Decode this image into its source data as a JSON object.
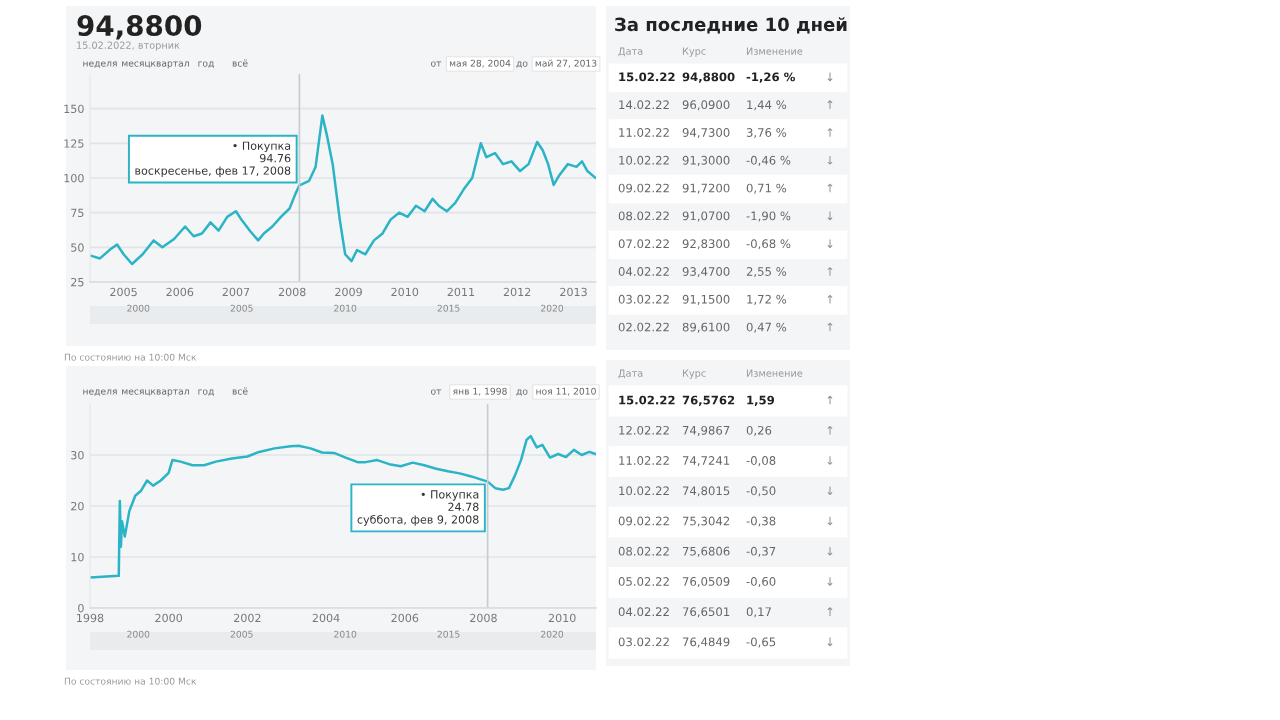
{
  "chart_data": [
    {
      "type": "line",
      "title": "94,8800",
      "subtitle": "15.02.2022, вторник",
      "x": [
        "2004-06-01",
        "2004-08-01",
        "2004-10-01",
        "2004-11-20",
        "2005-01-01",
        "2005-02-25",
        "2005-05-05",
        "2005-07-15",
        "2005-09-10",
        "2005-11-25",
        "2006-02-05",
        "2006-04-01",
        "2006-05-25",
        "2006-07-20",
        "2006-09-10",
        "2006-11-05",
        "2007-01-01",
        "2007-02-05",
        "2007-04-01",
        "2007-05-25",
        "2007-07-01",
        "2007-08-25",
        "2007-10-20",
        "2007-12-15",
        "2008-01-20",
        "2008-02-17",
        "2008-04-20",
        "2008-06-01",
        "2008-07-15",
        "2008-08-15",
        "2008-09-20",
        "2008-11-05",
        "2008-12-10",
        "2009-01-20",
        "2009-02-25",
        "2009-04-20",
        "2009-06-15",
        "2009-08-10",
        "2009-10-01",
        "2009-11-25",
        "2010-01-20",
        "2010-03-15",
        "2010-05-10",
        "2010-07-01",
        "2010-08-10",
        "2010-10-01",
        "2010-11-25",
        "2011-01-20",
        "2011-03-15",
        "2011-05-10",
        "2011-06-15",
        "2011-08-10",
        "2011-10-01",
        "2011-11-25",
        "2012-01-20",
        "2012-03-15",
        "2012-05-10",
        "2012-06-15",
        "2012-07-20",
        "2012-08-25",
        "2012-10-01",
        "2012-11-25",
        "2013-01-20",
        "2013-02-25",
        "2013-04-01",
        "2013-05-25"
      ],
      "series": [
        {
          "color": "#2bb3c6",
          "values": [
            44,
            42,
            48,
            52,
            45,
            38,
            45,
            55,
            50,
            56,
            65,
            58,
            60,
            68,
            62,
            72,
            76,
            70,
            62,
            55,
            60,
            65,
            72,
            78,
            88,
            94.76,
            98,
            108,
            145,
            130,
            110,
            70,
            45,
            40,
            48,
            45,
            55,
            60,
            70,
            75,
            72,
            80,
            76,
            85,
            80,
            76,
            82,
            92,
            100,
            125,
            115,
            118,
            110,
            112,
            105,
            110,
            126,
            120,
            110,
            95,
            102,
            110,
            108,
            112,
            105,
            100
          ]
        }
      ],
      "xlim": [
        "2004-05-28",
        "2013-05-27"
      ],
      "ylim": [
        25,
        175
      ],
      "xticks": [
        {
          "value": "2005-01-01",
          "label": "2005"
        },
        {
          "value": "2006-01-01",
          "label": "2006"
        },
        {
          "value": "2007-01-01",
          "label": "2007"
        },
        {
          "value": "2008-01-01",
          "label": "2008"
        },
        {
          "value": "2009-01-01",
          "label": "2009"
        },
        {
          "value": "2010-01-01",
          "label": "2010"
        },
        {
          "value": "2011-01-01",
          "label": "2011"
        },
        {
          "value": "2012-01-01",
          "label": "2012"
        },
        {
          "value": "2013-01-01",
          "label": "2013"
        }
      ],
      "yticks": [
        25,
        50,
        75,
        100,
        125,
        150
      ],
      "grid": "y",
      "ref_lines": [
        {
          "axis": "x",
          "value": "2008-02-17",
          "color": "#c8ccd2"
        }
      ],
      "annotations": [
        "неделя",
        "месяц",
        "квартал",
        "год",
        "всё",
        "от",
        "мая 28, 2004",
        "до",
        "май 27, 2013",
        "По состоянию на 10:00 Мск",
        {
          "text": "• Покупка\n94.76\nвоскресенье, фев 17, 2008",
          "x": "2008-02-17",
          "y": 94.76
        }
      ],
      "x2lim": [
        "1997-09-01",
        "2022-02-15"
      ],
      "x2ticks": [
        {
          "value": "2000-01-01",
          "label": "2000"
        },
        {
          "value": "2005-01-01",
          "label": "2005"
        },
        {
          "value": "2010-01-01",
          "label": "2010"
        },
        {
          "value": "2015-01-01",
          "label": "2015"
        },
        {
          "value": "2020-01-01",
          "label": "2020"
        }
      ]
    },
    {
      "type": "other",
      "title": "За последние 10 дней",
      "categories": [
        "Дата",
        "Курс",
        "Изменение",
        null
      ],
      "annotations": [
        "15.02.22",
        "94,8800",
        "-1,26 %",
        "↓",
        "14.02.22",
        "96,0900",
        "1,44 %",
        "↑",
        "11.02.22",
        "94,7300",
        "3,76 %",
        "↑",
        "10.02.22",
        "91,3000",
        "-0,46 %",
        "↓",
        "09.02.22",
        "91,7200",
        "0,71 %",
        "↑",
        "08.02.22",
        "91,0700",
        "-1,90 %",
        "↓",
        "07.02.22",
        "92,8300",
        "-0,68 %",
        "↓",
        "04.02.22",
        "93,4700",
        "2,55 %",
        "↑",
        "03.02.22",
        "91,1500",
        "1,72 %",
        "↑",
        "02.02.22",
        "89,6100",
        "0,47 %",
        "↑"
      ]
    },
    {
      "type": "line",
      "x": [
        "1998-01-01",
        "1998-09-25",
        "1998-10-05",
        "1998-10-15",
        "1998-10-25",
        "1998-11-20",
        "1999-01-01",
        "1999-02-25",
        "1999-04-20",
        "1999-06-15",
        "1999-08-10",
        "1999-10-20",
        "2000-01-01",
        "2000-02-05",
        "2000-04-20",
        "2000-08-10",
        "2000-11-25",
        "2001-03-15",
        "2001-08-10",
        "2002-01-01",
        "2002-04-20",
        "2002-09-10",
        "2003-02-05",
        "2003-04-20",
        "2003-08-10",
        "2003-11-25",
        "2004-03-15",
        "2004-07-01",
        "2004-10-20",
        "2005-01-01",
        "2005-04-20",
        "2005-08-10",
        "2005-11-25",
        "2006-03-15",
        "2006-07-01",
        "2006-10-20",
        "2007-02-05",
        "2007-05-25",
        "2007-09-10",
        "2008-02-09",
        "2008-04-20",
        "2008-07-01",
        "2008-08-25",
        "2008-10-20",
        "2008-12-15",
        "2009-02-05",
        "2009-03-15",
        "2009-05-10",
        "2009-07-01",
        "2009-09-10",
        "2009-11-25",
        "2010-02-05",
        "2010-04-20",
        "2010-07-01",
        "2010-09-10",
        "2010-11-05"
      ],
      "series": [
        {
          "color": "#2bb3c6",
          "values": [
            6,
            6.3,
            21,
            12,
            17,
            14,
            19,
            22,
            23,
            25,
            24,
            25,
            26.5,
            29,
            28.7,
            28,
            28,
            28.7,
            29.3,
            29.7,
            30.6,
            31.3,
            31.7,
            31.8,
            31.3,
            30.5,
            30.4,
            29.5,
            28.6,
            28.6,
            29,
            28.2,
            27.8,
            28.5,
            28,
            27.3,
            26.8,
            26.4,
            25.8,
            24.78,
            23.5,
            23.2,
            23.5,
            26,
            29,
            33,
            33.7,
            31.5,
            32,
            29.5,
            30.2,
            29.6,
            31,
            30,
            30.6,
            30.2
          ]
        }
      ],
      "xlim": [
        "1998-01-01",
        "2010-11-11"
      ],
      "ylim": [
        0,
        40
      ],
      "xticks": [
        {
          "value": "1998-01-01",
          "label": "1998"
        },
        {
          "value": "2000-01-01",
          "label": "2000"
        },
        {
          "value": "2002-01-01",
          "label": "2002"
        },
        {
          "value": "2004-01-01",
          "label": "2004"
        },
        {
          "value": "2006-01-01",
          "label": "2006"
        },
        {
          "value": "2008-01-01",
          "label": "2008"
        },
        {
          "value": "2010-01-01",
          "label": "2010"
        }
      ],
      "yticks": [
        0,
        10,
        20,
        30
      ],
      "grid": "y",
      "ref_lines": [
        {
          "axis": "x",
          "value": "2008-02-09",
          "color": "#c8ccd2"
        }
      ],
      "annotations": [
        "неделя",
        "месяц",
        "квартал",
        "год",
        "всё",
        "от",
        "янв 1, 1998",
        "до",
        "ноя 11, 2010",
        "По состоянию на 10:00 Мск",
        {
          "text": "• Покупка\n24.78\nсуббота, фев 9, 2008",
          "x": "2008-02-09",
          "y": 24.78
        }
      ],
      "x2lim": [
        "1997-09-01",
        "2022-02-15"
      ],
      "x2ticks": [
        {
          "value": "2000-01-01",
          "label": "2000"
        },
        {
          "value": "2005-01-01",
          "label": "2005"
        },
        {
          "value": "2010-01-01",
          "label": "2010"
        },
        {
          "value": "2015-01-01",
          "label": "2015"
        },
        {
          "value": "2020-01-01",
          "label": "2020"
        }
      ]
    },
    {
      "type": "other",
      "categories": [
        "Дата",
        "Курс",
        "Изменение",
        null
      ],
      "annotations": [
        "15.02.22",
        "76,5762",
        "1,59",
        "↑",
        "12.02.22",
        "74,9867",
        "0,26",
        "↑",
        "11.02.22",
        "74,7241",
        "-0,08",
        "↓",
        "10.02.22",
        "74,8015",
        "-0,50",
        "↓",
        "09.02.22",
        "75,3042",
        "-0,38",
        "↓",
        "08.02.22",
        "75,6806",
        "-0,37",
        "↓",
        "05.02.22",
        "76,0509",
        "-0,60",
        "↓",
        "04.02.22",
        "76,6501",
        "0,17",
        "↑",
        "03.02.22",
        "76,4849",
        "-0,65",
        "↓"
      ]
    }
  ]
}
